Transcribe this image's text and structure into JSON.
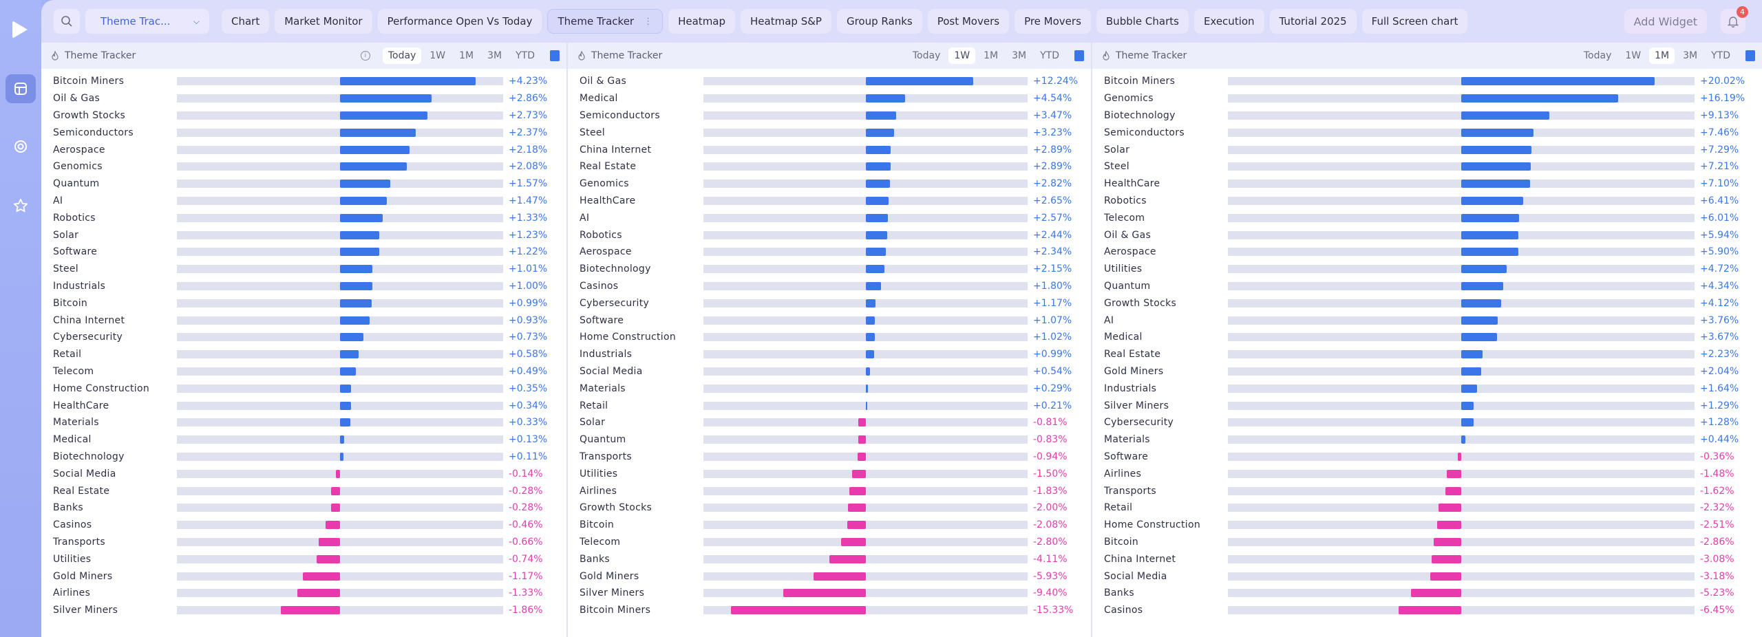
{
  "topbar": {
    "dropdown": "Theme Trac...",
    "tabs": [
      "Chart",
      "Market Monitor",
      "Performance Open Vs Today",
      "Theme Tracker",
      "Heatmap",
      "Heatmap S&P",
      "Group Ranks",
      "Post Movers",
      "Pre Movers",
      "Bubble Charts",
      "Execution",
      "Tutorial 2025",
      "Full Screen chart"
    ],
    "active_tab": 3,
    "add_widget": "Add Widget",
    "notifications": "4"
  },
  "colors": {
    "positive": "#3b76e8",
    "negative": "#e83aad",
    "track": "#e0e1ef"
  },
  "periods": [
    "Today",
    "1W",
    "1M",
    "3M",
    "YTD"
  ],
  "panels": [
    {
      "title": "Theme Tracker",
      "active_period": "Today",
      "info": true,
      "rows": [
        [
          "Bitcoin Miners",
          4.23
        ],
        [
          "Oil & Gas",
          2.86
        ],
        [
          "Growth Stocks",
          2.73
        ],
        [
          "Semiconductors",
          2.37
        ],
        [
          "Aerospace",
          2.18
        ],
        [
          "Genomics",
          2.08
        ],
        [
          "Quantum",
          1.57
        ],
        [
          "AI",
          1.47
        ],
        [
          "Robotics",
          1.33
        ],
        [
          "Solar",
          1.23
        ],
        [
          "Software",
          1.22
        ],
        [
          "Steel",
          1.01
        ],
        [
          "Industrials",
          1.0
        ],
        [
          "Bitcoin",
          0.99
        ],
        [
          "China Internet",
          0.93
        ],
        [
          "Cybersecurity",
          0.73
        ],
        [
          "Retail",
          0.58
        ],
        [
          "Telecom",
          0.49
        ],
        [
          "Home Construction",
          0.35
        ],
        [
          "HealthCare",
          0.34
        ],
        [
          "Materials",
          0.33
        ],
        [
          "Medical",
          0.13
        ],
        [
          "Biotechnology",
          0.11
        ],
        [
          "Social Media",
          -0.14
        ],
        [
          "Real Estate",
          -0.28
        ],
        [
          "Banks",
          -0.28
        ],
        [
          "Casinos",
          -0.46
        ],
        [
          "Transports",
          -0.66
        ],
        [
          "Utilities",
          -0.74
        ],
        [
          "Gold Miners",
          -1.17
        ],
        [
          "Airlines",
          -1.33
        ],
        [
          "Silver Miners",
          -1.86
        ]
      ]
    },
    {
      "title": "Theme Tracker",
      "active_period": "1W",
      "info": false,
      "rows": [
        [
          "Oil & Gas",
          12.24
        ],
        [
          "Medical",
          4.54
        ],
        [
          "Semiconductors",
          3.47
        ],
        [
          "Steel",
          3.23
        ],
        [
          "China Internet",
          2.89
        ],
        [
          "Real Estate",
          2.89
        ],
        [
          "Genomics",
          2.82
        ],
        [
          "HealthCare",
          2.65
        ],
        [
          "AI",
          2.57
        ],
        [
          "Robotics",
          2.44
        ],
        [
          "Aerospace",
          2.34
        ],
        [
          "Biotechnology",
          2.15
        ],
        [
          "Casinos",
          1.8
        ],
        [
          "Cybersecurity",
          1.17
        ],
        [
          "Software",
          1.07
        ],
        [
          "Home Construction",
          1.02
        ],
        [
          "Industrials",
          0.99
        ],
        [
          "Social Media",
          0.54
        ],
        [
          "Materials",
          0.29
        ],
        [
          "Retail",
          0.21
        ],
        [
          "Solar",
          -0.81
        ],
        [
          "Quantum",
          -0.83
        ],
        [
          "Transports",
          -0.94
        ],
        [
          "Utilities",
          -1.5
        ],
        [
          "Airlines",
          -1.83
        ],
        [
          "Growth Stocks",
          -2.0
        ],
        [
          "Bitcoin",
          -2.08
        ],
        [
          "Telecom",
          -2.8
        ],
        [
          "Banks",
          -4.11
        ],
        [
          "Gold Miners",
          -5.93
        ],
        [
          "Silver Miners",
          -9.4
        ],
        [
          "Bitcoin Miners",
          -15.33
        ]
      ]
    },
    {
      "title": "Theme Tracker",
      "active_period": "1M",
      "info": false,
      "rows": [
        [
          "Bitcoin Miners",
          20.02
        ],
        [
          "Genomics",
          16.19
        ],
        [
          "Biotechnology",
          9.13
        ],
        [
          "Semiconductors",
          7.46
        ],
        [
          "Solar",
          7.29
        ],
        [
          "Steel",
          7.21
        ],
        [
          "HealthCare",
          7.1
        ],
        [
          "Robotics",
          6.41
        ],
        [
          "Telecom",
          6.01
        ],
        [
          "Oil & Gas",
          5.94
        ],
        [
          "Aerospace",
          5.9
        ],
        [
          "Utilities",
          4.72
        ],
        [
          "Quantum",
          4.34
        ],
        [
          "Growth Stocks",
          4.12
        ],
        [
          "AI",
          3.76
        ],
        [
          "Medical",
          3.67
        ],
        [
          "Real Estate",
          2.23
        ],
        [
          "Gold Miners",
          2.04
        ],
        [
          "Industrials",
          1.64
        ],
        [
          "Silver Miners",
          1.29
        ],
        [
          "Cybersecurity",
          1.28
        ],
        [
          "Materials",
          0.44
        ],
        [
          "Software",
          -0.36
        ],
        [
          "Airlines",
          -1.48
        ],
        [
          "Transports",
          -1.62
        ],
        [
          "Retail",
          -2.32
        ],
        [
          "Home Construction",
          -2.51
        ],
        [
          "Bitcoin",
          -2.86
        ],
        [
          "China Internet",
          -3.08
        ],
        [
          "Social Media",
          -3.18
        ],
        [
          "Banks",
          -5.23
        ],
        [
          "Casinos",
          -6.45
        ]
      ]
    }
  ]
}
